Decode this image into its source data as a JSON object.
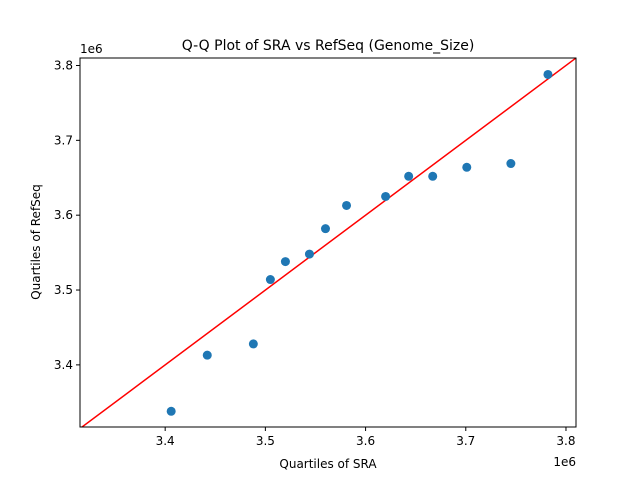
{
  "chart_data": {
    "type": "scatter",
    "title": "Q-Q Plot of SRA vs RefSeq (Genome_Size)",
    "xlabel": "Quartiles of SRA",
    "ylabel": "Quartiles of RefSeq",
    "x_offset_label": "1e6",
    "y_offset_label": "1e6",
    "xlim": [
      3.315,
      3.81
    ],
    "ylim": [
      3.317,
      3.81
    ],
    "x_ticks": [
      3.4,
      3.5,
      3.6,
      3.7,
      3.8
    ],
    "y_ticks": [
      3.4,
      3.5,
      3.6,
      3.7,
      3.8
    ],
    "x_tick_labels": [
      "3.4",
      "3.5",
      "3.6",
      "3.7",
      "3.8"
    ],
    "y_tick_labels": [
      "3.4",
      "3.5",
      "3.6",
      "3.7",
      "3.8"
    ],
    "grid": false,
    "point_color": "#1f77b4",
    "reference_line_color": "#ff0000",
    "reference_line": "y = x",
    "points": [
      {
        "x": 3.406,
        "y": 3.338
      },
      {
        "x": 3.442,
        "y": 3.413
      },
      {
        "x": 3.488,
        "y": 3.428
      },
      {
        "x": 3.505,
        "y": 3.514
      },
      {
        "x": 3.52,
        "y": 3.538
      },
      {
        "x": 3.544,
        "y": 3.548
      },
      {
        "x": 3.56,
        "y": 3.582
      },
      {
        "x": 3.581,
        "y": 3.613
      },
      {
        "x": 3.62,
        "y": 3.625
      },
      {
        "x": 3.643,
        "y": 3.652
      },
      {
        "x": 3.667,
        "y": 3.652
      },
      {
        "x": 3.701,
        "y": 3.664
      },
      {
        "x": 3.745,
        "y": 3.669
      },
      {
        "x": 3.782,
        "y": 3.788
      }
    ]
  }
}
